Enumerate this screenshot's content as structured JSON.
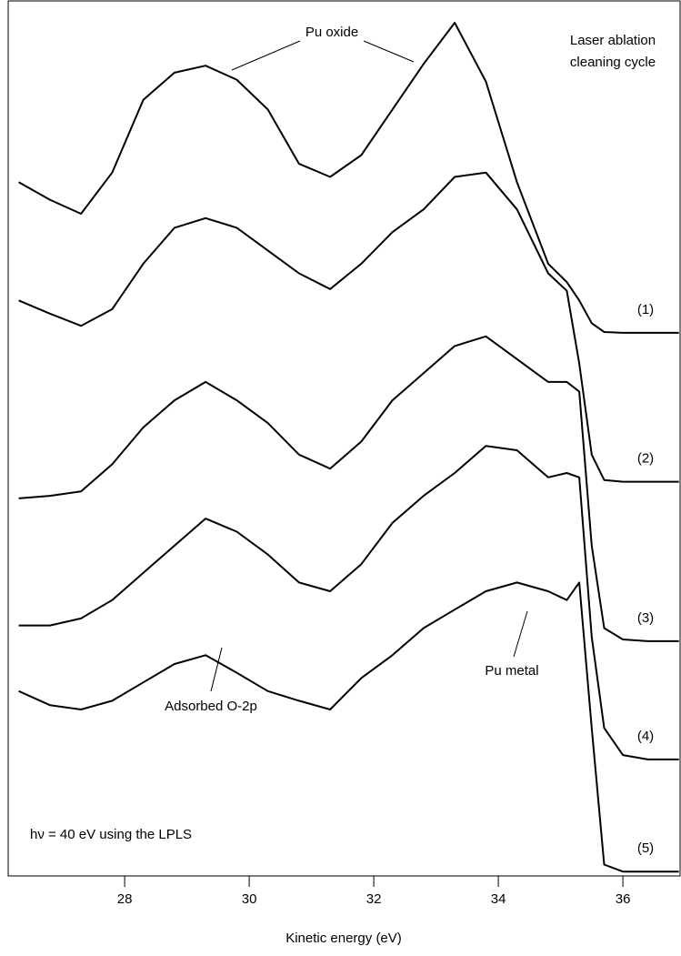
{
  "chart_data": {
    "type": "line",
    "xlabel": "Kinetic energy (eV)",
    "xlim": [
      26.13,
      36.93
    ],
    "xticks": [
      28,
      30,
      32,
      34,
      36
    ],
    "ylim": [
      0,
      100
    ],
    "x": [
      26.3,
      26.8,
      27.3,
      27.8,
      28.3,
      28.8,
      29.3,
      29.8,
      30.3,
      30.8,
      31.3,
      31.8,
      32.3,
      32.8,
      33.3,
      33.8,
      34.3,
      34.8,
      35.1,
      35.3,
      35.5,
      35.7,
      36.0,
      36.4,
      36.9
    ],
    "series": [
      {
        "name": "(1)",
        "color": "#000000",
        "values": [
          79.2,
          77.2,
          75.6,
          80.3,
          88.6,
          91.7,
          92.5,
          90.9,
          87.5,
          81.3,
          79.8,
          82.3,
          87.5,
          92.7,
          97.4,
          90.7,
          79.2,
          69.9,
          67.8,
          65.7,
          63.1,
          62.1,
          62.0,
          62.0,
          62.0
        ]
      },
      {
        "name": "(2)",
        "color": "#000000",
        "values": [
          65.7,
          64.2,
          62.8,
          64.7,
          69.9,
          74.0,
          75.1,
          74.0,
          71.4,
          68.8,
          67.0,
          69.9,
          73.5,
          76.1,
          79.8,
          80.3,
          76.1,
          68.8,
          66.8,
          58.5,
          48.1,
          45.2,
          45.0,
          45.0,
          45.0
        ]
      },
      {
        "name": "(3)",
        "color": "#000000",
        "values": [
          43.1,
          43.4,
          43.9,
          47.0,
          51.2,
          54.3,
          56.4,
          54.3,
          51.7,
          48.1,
          46.5,
          49.6,
          54.3,
          57.4,
          60.5,
          61.6,
          59.0,
          56.4,
          56.4,
          55.3,
          37.7,
          28.3,
          27.0,
          26.8,
          26.8
        ]
      },
      {
        "name": "(4)",
        "color": "#000000",
        "values": [
          28.6,
          28.6,
          29.4,
          31.5,
          34.6,
          37.7,
          40.8,
          39.3,
          36.7,
          33.5,
          32.5,
          35.6,
          40.3,
          43.4,
          46.0,
          49.1,
          48.6,
          45.5,
          46.0,
          45.5,
          27.3,
          16.9,
          13.8,
          13.3,
          13.3
        ]
      },
      {
        "name": "(5)",
        "color": "#000000",
        "values": [
          21.1,
          19.5,
          19.0,
          20.0,
          22.1,
          24.2,
          25.2,
          23.2,
          21.1,
          20.0,
          19.0,
          22.6,
          25.2,
          28.3,
          30.4,
          32.5,
          33.5,
          32.5,
          31.5,
          33.5,
          16.9,
          1.3,
          0.5,
          0.5,
          0.5
        ]
      }
    ],
    "annotations": [
      "Pu oxide",
      "Laser ablation",
      "cleaning cycle",
      "Pu metal",
      "Adsorbed O-2p",
      "hν = 40 eV using the LPLS"
    ]
  }
}
